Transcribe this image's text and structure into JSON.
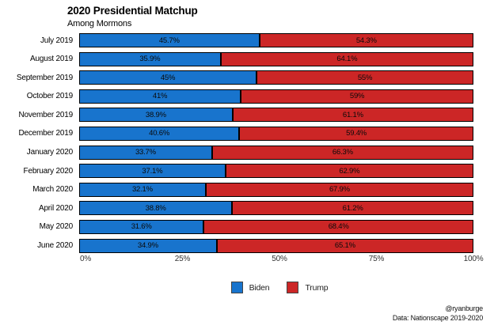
{
  "header": {
    "title": "2020 Presidential Matchup",
    "subtitle": "Among Mormons"
  },
  "chart_data": {
    "type": "bar",
    "orientation": "horizontal-stacked",
    "title": "2020 Presidential Matchup",
    "subtitle": "Among Mormons",
    "categories": [
      "July 2019",
      "August 2019",
      "September 2019",
      "October 2019",
      "November 2019",
      "December 2019",
      "January 2020",
      "February 2020",
      "March 2020",
      "April 2020",
      "May 2020",
      "June 2020"
    ],
    "series": [
      {
        "name": "Biden",
        "color": "#1874CD",
        "values": [
          45.7,
          35.9,
          45,
          41,
          38.9,
          40.6,
          33.7,
          37.1,
          32.1,
          38.8,
          31.6,
          34.9
        ],
        "labels": [
          "45.7%",
          "35.9%",
          "45%",
          "41%",
          "38.9%",
          "40.6%",
          "33.7%",
          "37.1%",
          "32.1%",
          "38.8%",
          "31.6%",
          "34.9%"
        ]
      },
      {
        "name": "Trump",
        "color": "#CC2626",
        "values": [
          54.3,
          64.1,
          55,
          59,
          61.1,
          59.4,
          66.3,
          62.9,
          67.9,
          61.2,
          68.4,
          65.1
        ],
        "labels": [
          "54.3%",
          "64.1%",
          "55%",
          "59%",
          "61.1%",
          "59.4%",
          "66.3%",
          "62.9%",
          "67.9%",
          "61.2%",
          "68.4%",
          "65.1%"
        ]
      }
    ],
    "xlim": [
      0,
      100
    ],
    "x_tick_values": [
      0,
      25,
      50,
      75,
      100
    ],
    "x_tick_labels": [
      "0%",
      "25%",
      "50%",
      "75%",
      "100%"
    ],
    "grid": false,
    "legend_position": "bottom",
    "legend": [
      "Biden",
      "Trump"
    ]
  },
  "footer": {
    "credit": "@ryanburge",
    "source": "Data: Nationscape 2019-2020"
  }
}
